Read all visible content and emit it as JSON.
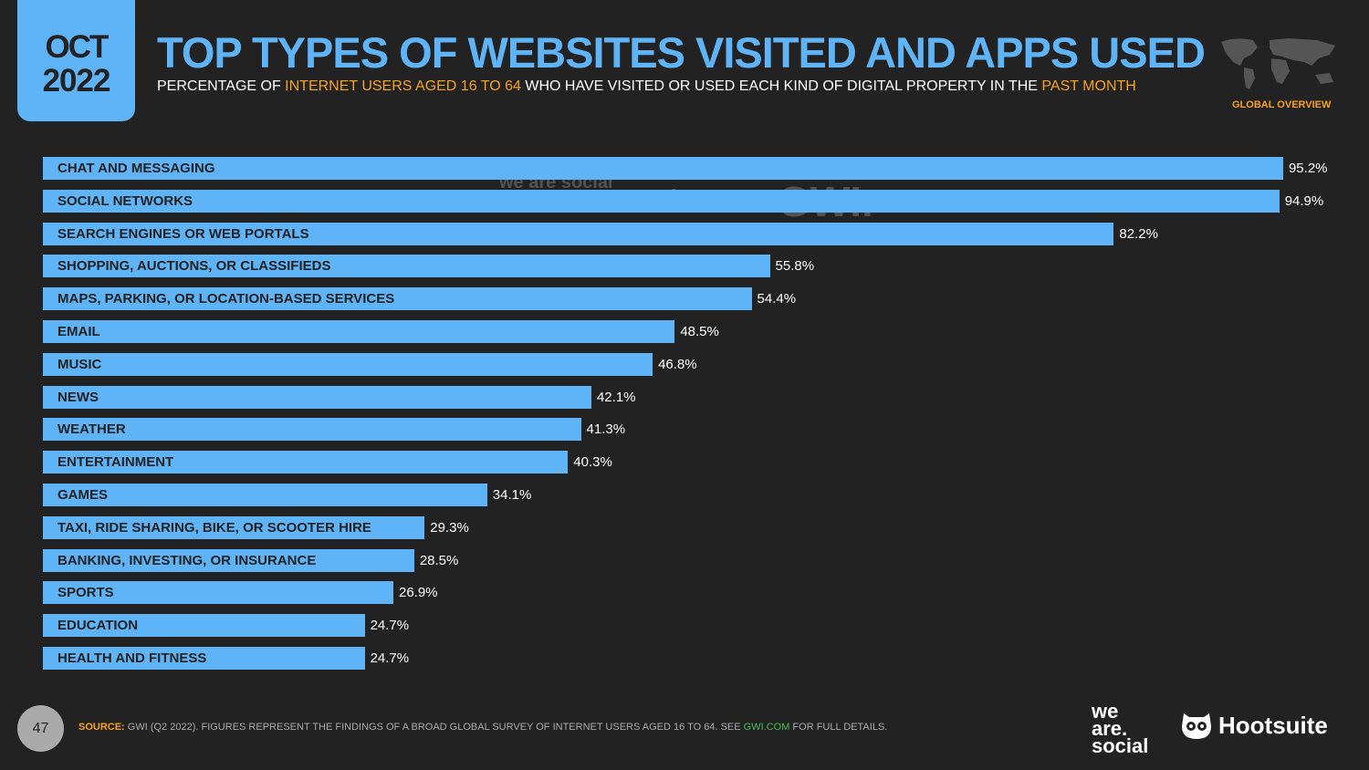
{
  "header": {
    "date_month": "OCT",
    "date_year": "2022",
    "title": "TOP TYPES OF WEBSITES VISITED AND APPS USED",
    "subtitle_parts": [
      "PERCENTAGE OF ",
      "INTERNET USERS AGED 16 TO 64",
      " WHO HAVE VISITED OR USED EACH KIND OF DIGITAL PROPERTY IN THE ",
      "PAST MONTH"
    ],
    "region": "GLOBAL OVERVIEW"
  },
  "watermarks": {
    "was": "we are social",
    "hootsuite": "Hootsuite",
    "gwi": "GWI."
  },
  "chart_data": {
    "type": "bar",
    "orientation": "horizontal",
    "categories": [
      "CHAT AND MESSAGING",
      "SOCIAL NETWORKS",
      "SEARCH ENGINES OR WEB PORTALS",
      "SHOPPING, AUCTIONS, OR CLASSIFIEDS",
      "MAPS, PARKING, OR LOCATION-BASED SERVICES",
      "EMAIL",
      "MUSIC",
      "NEWS",
      "WEATHER",
      "ENTERTAINMENT",
      "GAMES",
      "TAXI, RIDE SHARING, BIKE, OR SCOOTER HIRE",
      "BANKING, INVESTING, OR INSURANCE",
      "SPORTS",
      "EDUCATION",
      "HEALTH AND FITNESS"
    ],
    "values": [
      95.2,
      94.9,
      82.2,
      55.8,
      54.4,
      48.5,
      46.8,
      42.1,
      41.3,
      40.3,
      34.1,
      29.3,
      28.5,
      26.9,
      24.7,
      24.7
    ],
    "value_labels": [
      "95.2%",
      "94.9%",
      "82.2%",
      "55.8%",
      "54.4%",
      "48.5%",
      "46.8%",
      "42.1%",
      "41.3%",
      "40.3%",
      "34.1%",
      "29.3%",
      "28.5%",
      "26.9%",
      "24.7%",
      "24.7%"
    ],
    "xlim": [
      0,
      100
    ],
    "grid": false,
    "bar_color": "#5eb4f7"
  },
  "footer": {
    "page": "47",
    "source_label": "SOURCE:",
    "source_text": " GWI (Q2 2022). FIGURES REPRESENT THE FINDINGS OF A BROAD GLOBAL SURVEY OF INTERNET USERS AGED 16 TO 64. SEE ",
    "source_link": "GWI.COM",
    "source_end": " FOR FULL DETAILS.",
    "logo_was": "we are social",
    "logo_hootsuite": "Hootsuite"
  },
  "colors": {
    "accent": "#5eb4f7",
    "highlight": "#f7a21b",
    "background": "#222222"
  }
}
